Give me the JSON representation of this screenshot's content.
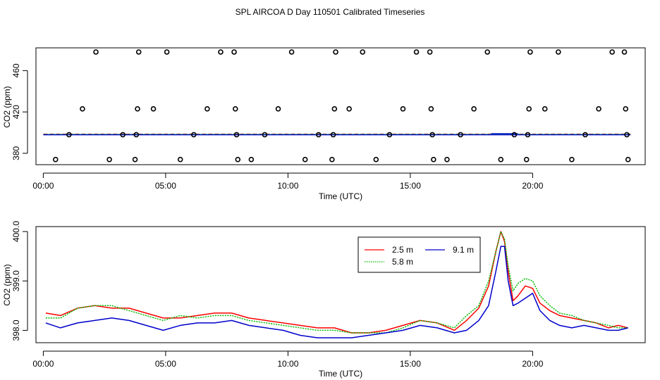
{
  "title": "SPL AIRCOA D  Day 110501  Calibrated Timeseries",
  "colors": {
    "series_2_5m": "#ff0000",
    "series_5_8m": "#00bb00",
    "series_9_1m": "#0000cc",
    "series_mixed": "#008888",
    "axis": "#000000"
  },
  "chart_data": [
    {
      "id": "top",
      "type": "scatter",
      "title": "",
      "xlabel": "Time (UTC)",
      "ylabel": "CO2 (ppm)",
      "xlim": [
        -0.3,
        24.6
      ],
      "ylim": [
        369,
        482
      ],
      "x_ticks": [
        0,
        5,
        10,
        15,
        20
      ],
      "x_tick_labels": [
        "00:00",
        "05:00",
        "10:00",
        "15:00",
        "20:00"
      ],
      "y_ticks": [
        380,
        420,
        460
      ],
      "y_tick_labels": [
        "380",
        "420",
        "460"
      ],
      "baseline_value": 398.2,
      "points": [
        [
          0.5,
          374
        ],
        [
          1.05,
          398
        ],
        [
          1.6,
          423
        ],
        [
          2.15,
          478
        ],
        [
          2.7,
          374
        ],
        [
          3.25,
          398
        ],
        [
          3.75,
          374
        ],
        [
          3.8,
          398
        ],
        [
          3.85,
          423
        ],
        [
          3.9,
          478
        ],
        [
          4.5,
          423
        ],
        [
          5.05,
          478
        ],
        [
          5.6,
          374
        ],
        [
          6.15,
          398
        ],
        [
          6.7,
          423
        ],
        [
          7.25,
          478
        ],
        [
          7.8,
          478
        ],
        [
          7.85,
          423
        ],
        [
          7.9,
          398
        ],
        [
          7.95,
          374
        ],
        [
          8.5,
          374
        ],
        [
          9.05,
          398
        ],
        [
          9.6,
          423
        ],
        [
          10.15,
          478
        ],
        [
          10.7,
          374
        ],
        [
          11.25,
          398
        ],
        [
          11.8,
          374
        ],
        [
          11.85,
          398
        ],
        [
          11.9,
          423
        ],
        [
          11.95,
          478
        ],
        [
          12.5,
          423
        ],
        [
          13.05,
          478
        ],
        [
          13.6,
          374
        ],
        [
          14.15,
          398
        ],
        [
          14.7,
          423
        ],
        [
          15.25,
          478
        ],
        [
          15.8,
          478
        ],
        [
          15.85,
          423
        ],
        [
          15.9,
          398
        ],
        [
          15.95,
          374
        ],
        [
          16.5,
          374
        ],
        [
          17.05,
          398
        ],
        [
          17.6,
          423
        ],
        [
          18.15,
          478
        ],
        [
          18.7,
          374
        ],
        [
          19.25,
          398
        ],
        [
          19.75,
          374
        ],
        [
          19.8,
          398
        ],
        [
          19.85,
          423
        ],
        [
          19.9,
          478
        ],
        [
          20.5,
          423
        ],
        [
          21.05,
          478
        ],
        [
          21.6,
          374
        ],
        [
          22.15,
          398
        ],
        [
          22.7,
          423
        ],
        [
          23.25,
          478
        ],
        [
          23.75,
          478
        ],
        [
          23.8,
          423
        ],
        [
          23.85,
          398
        ],
        [
          23.9,
          374
        ]
      ]
    },
    {
      "id": "bottom",
      "type": "line",
      "title": "",
      "xlabel": "Time (UTC)",
      "ylabel": "CO2 (ppm)",
      "xlim": [
        -0.3,
        24.6
      ],
      "ylim": [
        397.75,
        400.1
      ],
      "x_ticks": [
        0,
        5,
        10,
        15,
        20
      ],
      "x_tick_labels": [
        "00:00",
        "05:00",
        "10:00",
        "15:00",
        "20:00"
      ],
      "y_ticks": [
        398.0,
        399.0,
        400.0
      ],
      "y_tick_labels": [
        "398.0",
        "399.0",
        "400.0"
      ],
      "legend": {
        "placement": "top-right",
        "entries": [
          "2.5 m",
          "5.8 m",
          "9.1 m"
        ]
      },
      "x": [
        0.1,
        0.7,
        1.4,
        2.1,
        2.8,
        3.5,
        4.2,
        4.9,
        5.6,
        6.3,
        7,
        7.7,
        8.4,
        9.1,
        9.8,
        10.5,
        11.2,
        11.9,
        12.6,
        13.3,
        14,
        14.7,
        15.4,
        16.1,
        16.8,
        17.3,
        17.8,
        18.2,
        18.5,
        18.7,
        18.85,
        19.0,
        19.2,
        19.4,
        19.7,
        20.0,
        20.3,
        20.7,
        21.1,
        21.6,
        22.1,
        22.6,
        23.1,
        23.5,
        23.9
      ],
      "series": [
        {
          "name": "2.5 m",
          "values": [
            398.35,
            398.3,
            398.45,
            398.5,
            398.45,
            398.45,
            398.35,
            398.25,
            398.25,
            398.3,
            398.35,
            398.35,
            398.25,
            398.2,
            398.15,
            398.1,
            398.05,
            398.05,
            397.95,
            397.95,
            398.0,
            398.1,
            398.2,
            398.15,
            398.0,
            398.2,
            398.45,
            398.9,
            399.6,
            400.0,
            399.8,
            399.2,
            398.6,
            398.7,
            398.9,
            398.85,
            398.55,
            398.4,
            398.3,
            398.25,
            398.2,
            398.15,
            398.05,
            398.1,
            398.05
          ]
        },
        {
          "name": "5.8 m",
          "values": [
            398.25,
            398.25,
            398.45,
            398.5,
            398.5,
            398.4,
            398.3,
            398.2,
            398.3,
            398.25,
            398.3,
            398.3,
            398.2,
            398.15,
            398.1,
            398.05,
            398.0,
            398.0,
            397.95,
            397.95,
            397.95,
            398.05,
            398.2,
            398.15,
            398.05,
            398.3,
            398.5,
            399.0,
            399.6,
            400.0,
            399.85,
            399.3,
            398.8,
            398.95,
            399.05,
            399.0,
            398.7,
            398.5,
            398.35,
            398.3,
            398.2,
            398.15,
            398.1,
            398.05,
            398.05
          ]
        },
        {
          "name": "9.1 m",
          "values": [
            398.15,
            398.05,
            398.15,
            398.2,
            398.25,
            398.2,
            398.1,
            398.0,
            398.1,
            398.15,
            398.15,
            398.2,
            398.1,
            398.05,
            398.0,
            397.9,
            397.85,
            397.85,
            397.85,
            397.9,
            397.95,
            398.0,
            398.1,
            398.05,
            397.95,
            398.0,
            398.2,
            398.5,
            399.2,
            399.7,
            399.7,
            399.0,
            398.5,
            398.55,
            398.65,
            398.75,
            398.4,
            398.2,
            398.1,
            398.05,
            398.1,
            398.05,
            398.0,
            398.0,
            398.05
          ]
        }
      ]
    }
  ]
}
